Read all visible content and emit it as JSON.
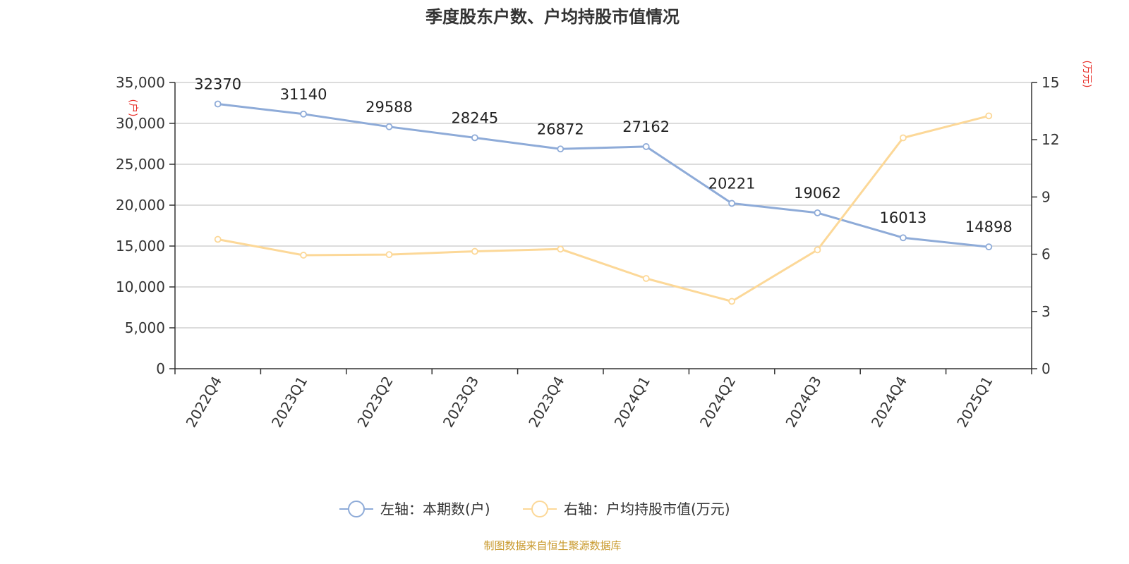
{
  "chart_data": {
    "type": "line",
    "title": "季度股东户数、户均持股市值情况",
    "categories": [
      "2022Q4",
      "2023Q1",
      "2023Q2",
      "2023Q3",
      "2023Q4",
      "2024Q1",
      "2024Q2",
      "2024Q3",
      "2024Q4",
      "2025Q1"
    ],
    "series": [
      {
        "name": "左轴：本期数(户)",
        "axis": "left",
        "color": "#8eabd8",
        "values": [
          32370,
          31140,
          29588,
          28245,
          26872,
          27162,
          20221,
          19062,
          16013,
          14898
        ],
        "data_labels": [
          "32370",
          "31140",
          "29588",
          "28245",
          "26872",
          "27162",
          "20221",
          "19062",
          "16013",
          "14898"
        ]
      },
      {
        "name": "右轴：户均持股市值(万元)",
        "axis": "right",
        "color": "#fcd898",
        "values": [
          6.78,
          5.95,
          5.98,
          6.15,
          6.27,
          4.73,
          3.53,
          6.23,
          12.1,
          13.25
        ]
      }
    ],
    "y_left": {
      "unit": "(户)",
      "ylim": [
        0,
        35000
      ],
      "ticks": [
        0,
        5000,
        10000,
        15000,
        20000,
        25000,
        30000,
        35000
      ],
      "tick_labels": [
        "0",
        "5,000",
        "10,000",
        "15,000",
        "20,000",
        "25,000",
        "30,000",
        "35,000"
      ]
    },
    "y_right": {
      "unit": "(万元)",
      "ylim": [
        0,
        15
      ],
      "ticks": [
        0,
        3,
        6,
        9,
        12,
        15
      ],
      "tick_labels": [
        "0",
        "3",
        "6",
        "9",
        "12",
        "15"
      ]
    },
    "grid": true,
    "legend_position": "bottom-center",
    "source": "制图数据来自恒生聚源数据库"
  }
}
